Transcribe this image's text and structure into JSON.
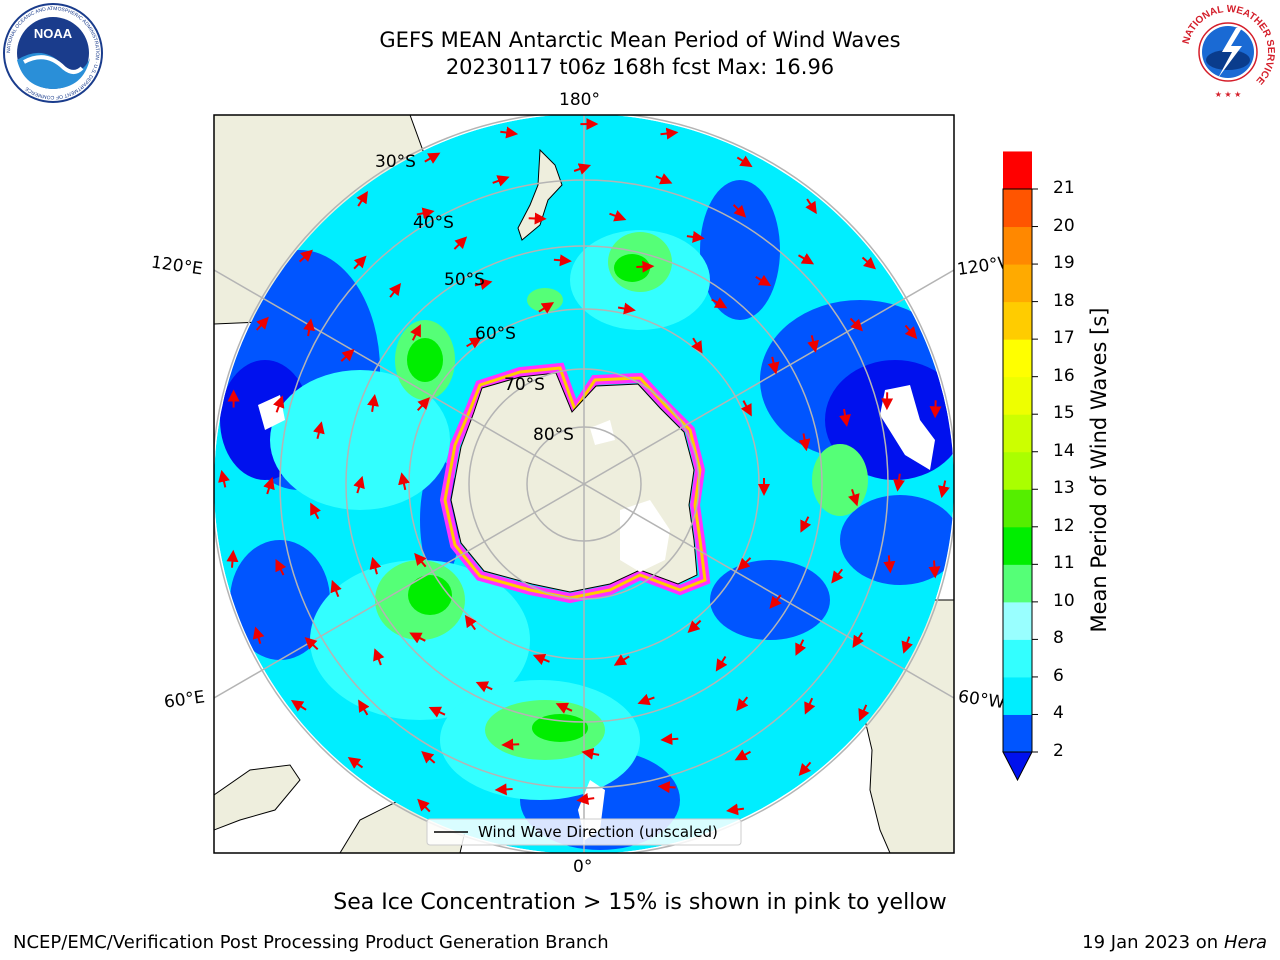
{
  "header": {
    "title_line1": "GEFS MEAN Antarctic Mean Period of Wind Waves",
    "title_line2": "20230117 t06z 168h fcst   Max: 16.96"
  },
  "logos": {
    "noaa_text": "NOAA",
    "noaa_ring": "NATIONAL OCEANIC AND ATMOSPHERIC ADMINISTRATION · U.S. DEPARTMENT OF COMMERCE",
    "nws_ring": "NATIONAL WEATHER SERVICE"
  },
  "map": {
    "projection": "south-polar-stereographic",
    "lon_labels": {
      "top": "180°",
      "bottom": "0°",
      "upper_left": "120°E",
      "upper_right": "120°W",
      "lower_left": "60°E",
      "lower_right": "60°W"
    },
    "lat_labels": [
      "30°S",
      "40°S",
      "50°S",
      "60°S",
      "70°S",
      "80°S"
    ],
    "legend_label": "Wind Wave Direction (unscaled)",
    "colors": {
      "land": "#eeeedd",
      "arrow": "#ee0000",
      "ice_edge": "#ff33ff",
      "grid": "#b4b4b4"
    }
  },
  "colorbar": {
    "label": "Mean Period of Wind Waves [s]",
    "ticks": [
      "2",
      "4",
      "6",
      "8",
      "10",
      "11",
      "12",
      "13",
      "14",
      "15",
      "16",
      "17",
      "18",
      "19",
      "20",
      "21"
    ],
    "colors": [
      "#0055ff",
      "#00eeff",
      "#33ffff",
      "#99ffff",
      "#55ff77",
      "#00ee00",
      "#55ee00",
      "#aaff00",
      "#ccff00",
      "#eeff00",
      "#ffff00",
      "#ffcc00",
      "#ffaa00",
      "#ff8800",
      "#ff5500",
      "#ff0000"
    ],
    "extend_color": "#0011ee"
  },
  "notes": {
    "sea_ice": "Sea Ice Concentration > 15% is shown in pink to yellow"
  },
  "footer": {
    "left": "NCEP/EMC/Verification Post Processing Product Generation Branch",
    "date": "19 Jan 2023 on ",
    "machine": "Hera"
  }
}
